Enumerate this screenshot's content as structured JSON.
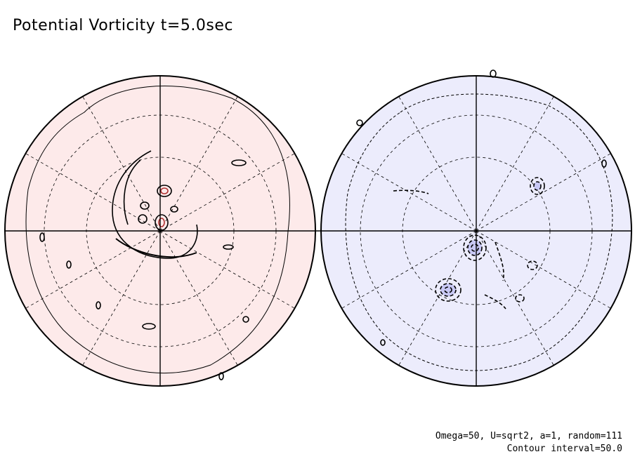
{
  "chart_data": {
    "type": "contour",
    "title": "Potential Vorticity t=5.0sec",
    "panels": [
      {
        "name": "north",
        "sign": "positive",
        "fill_color": "#fdeaea",
        "contour_color": "#b03030"
      },
      {
        "name": "south",
        "sign": "negative",
        "fill_color": "#ececfc",
        "contour_color": "#3030b0"
      }
    ],
    "grid": true,
    "parameters_text": "Omega=50, U=sqrt2, a=1, random=111",
    "contour_interval_text": "Contour interval=50.0"
  }
}
